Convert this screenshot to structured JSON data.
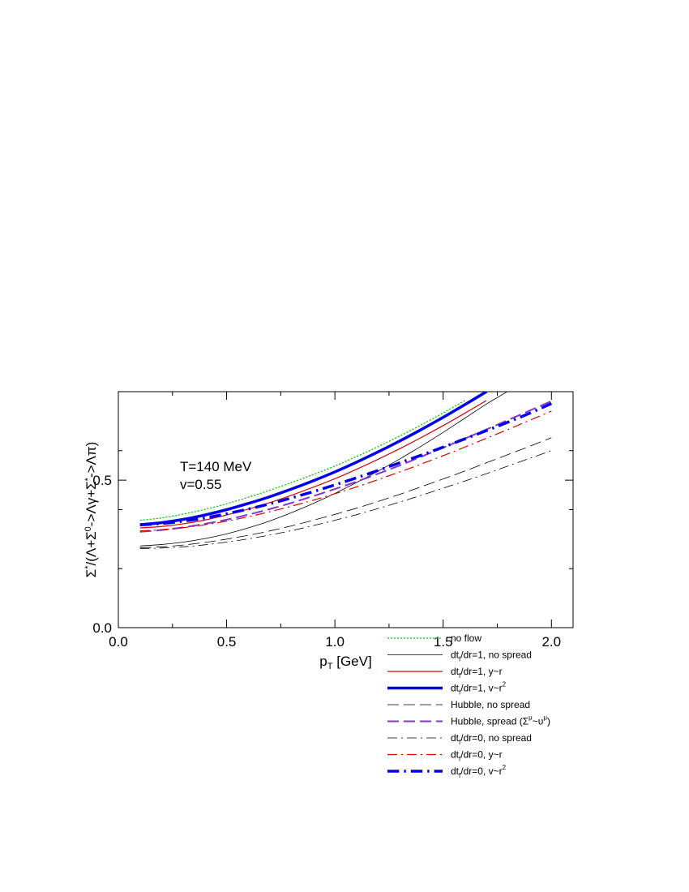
{
  "chart_data": {
    "type": "line",
    "title": "",
    "xlabel": "p_T [GeV]",
    "ylabel": "Σ*/(Λ+Σ0->Λγ+Σ*->Λπ)",
    "xlim": [
      0.0,
      2.1
    ],
    "ylim": [
      0.0,
      0.8
    ],
    "x_ticks": [
      0.0,
      0.5,
      1.0,
      1.5,
      2.0
    ],
    "x_tick_labels": [
      "0.0",
      "0.5",
      "1.0",
      "1.5",
      "2.0"
    ],
    "y_ticks": [
      0.0,
      0.5
    ],
    "y_tick_labels": [
      "0.0",
      "0.5"
    ],
    "annotations": [
      "T=140 MeV",
      "v=0.55"
    ],
    "legend_position": "bottom-right",
    "grid": false,
    "series": [
      {
        "name": "no flow",
        "color": "#00cc00",
        "dash": "dotted",
        "width": 1.3,
        "x": [
          0.1,
          0.2,
          0.3,
          0.4,
          0.5,
          0.6,
          0.7,
          0.8,
          0.9,
          1.0,
          1.1,
          1.2,
          1.3,
          1.4,
          1.5,
          1.6
        ],
        "y": [
          0.364,
          0.372,
          0.385,
          0.401,
          0.42,
          0.442,
          0.466,
          0.492,
          0.519,
          0.548,
          0.58,
          0.614,
          0.65,
          0.688,
          0.728,
          0.77
        ]
      },
      {
        "name": "dt_f/dr=1, no spread",
        "color": "#000000",
        "dash": "solid",
        "width": 0.8,
        "x": [
          0.1,
          0.2,
          0.3,
          0.4,
          0.5,
          0.6,
          0.7,
          0.8,
          0.9,
          1.0,
          1.1,
          1.2,
          1.3,
          1.4,
          1.5,
          1.6,
          1.7,
          1.8,
          1.9
        ],
        "y": [
          0.277,
          0.282,
          0.29,
          0.302,
          0.318,
          0.338,
          0.362,
          0.39,
          0.421,
          0.455,
          0.492,
          0.531,
          0.572,
          0.616,
          0.662,
          0.71,
          0.758,
          0.802,
          0.848
        ]
      },
      {
        "name": "dt_f/dr=1, y~r",
        "color": "#dd0000",
        "dash": "solid",
        "width": 1.2,
        "x": [
          0.1,
          0.2,
          0.3,
          0.4,
          0.5,
          0.6,
          0.7,
          0.8,
          0.9,
          1.0,
          1.1,
          1.2,
          1.3,
          1.4,
          1.5,
          1.6,
          1.7
        ],
        "y": [
          0.338,
          0.343,
          0.352,
          0.365,
          0.382,
          0.402,
          0.424,
          0.449,
          0.476,
          0.505,
          0.537,
          0.571,
          0.607,
          0.645,
          0.685,
          0.727,
          0.77
        ]
      },
      {
        "name": "dt_f/dr=1, v~r^2",
        "color": "#0000ee",
        "dash": "solid",
        "width": 3.5,
        "x": [
          0.1,
          0.2,
          0.3,
          0.4,
          0.5,
          0.6,
          0.7,
          0.8,
          0.9,
          1.0,
          1.1,
          1.2,
          1.3,
          1.4,
          1.5,
          1.6,
          1.7
        ],
        "y": [
          0.349,
          0.356,
          0.367,
          0.382,
          0.4,
          0.421,
          0.444,
          0.47,
          0.498,
          0.528,
          0.561,
          0.596,
          0.633,
          0.672,
          0.713,
          0.756,
          0.8
        ]
      },
      {
        "name": "Hubble, no spread",
        "color": "#000000",
        "dash": "dashed",
        "width": 0.8,
        "x": [
          0.1,
          0.2,
          0.3,
          0.4,
          0.5,
          0.6,
          0.7,
          0.8,
          0.9,
          1.0,
          1.1,
          1.2,
          1.3,
          1.4,
          1.5,
          1.6,
          1.7,
          1.8,
          1.9,
          2.0
        ],
        "y": [
          0.271,
          0.274,
          0.28,
          0.289,
          0.3,
          0.313,
          0.328,
          0.345,
          0.364,
          0.384,
          0.405,
          0.428,
          0.452,
          0.478,
          0.504,
          0.531,
          0.559,
          0.587,
          0.615,
          0.644
        ]
      },
      {
        "name": "Hubble, spread (Σ^μ~υ^μ)",
        "color": "#8833cc",
        "dash": "dashed",
        "width": 2.0,
        "x": [
          0.1,
          0.2,
          0.3,
          0.4,
          0.5,
          0.6,
          0.7,
          0.8,
          0.9,
          1.0,
          1.1,
          1.2,
          1.3,
          1.4,
          1.5,
          1.6,
          1.7,
          1.8,
          1.9,
          2.0
        ],
        "y": [
          0.325,
          0.331,
          0.34,
          0.352,
          0.366,
          0.383,
          0.402,
          0.423,
          0.446,
          0.47,
          0.495,
          0.522,
          0.55,
          0.58,
          0.61,
          0.641,
          0.672,
          0.704,
          0.736,
          0.768
        ]
      },
      {
        "name": "dt_f/dr=0, no spread",
        "color": "#000000",
        "dash": "dashdot",
        "width": 0.8,
        "x": [
          0.1,
          0.2,
          0.3,
          0.4,
          0.5,
          0.6,
          0.7,
          0.8,
          0.9,
          1.0,
          1.1,
          1.2,
          1.3,
          1.4,
          1.5,
          1.6,
          1.7,
          1.8,
          1.9,
          2.0
        ],
        "y": [
          0.268,
          0.27,
          0.274,
          0.281,
          0.29,
          0.301,
          0.314,
          0.329,
          0.346,
          0.364,
          0.383,
          0.404,
          0.426,
          0.449,
          0.473,
          0.497,
          0.522,
          0.548,
          0.574,
          0.6
        ]
      },
      {
        "name": "dt_f/dr=0, y~r",
        "color": "#dd0000",
        "dash": "dashdot",
        "width": 1.2,
        "x": [
          0.1,
          0.2,
          0.3,
          0.4,
          0.5,
          0.6,
          0.7,
          0.8,
          0.9,
          1.0,
          1.1,
          1.2,
          1.3,
          1.4,
          1.5,
          1.6,
          1.7,
          1.8,
          1.9,
          2.0
        ],
        "y": [
          0.328,
          0.332,
          0.339,
          0.349,
          0.361,
          0.376,
          0.393,
          0.412,
          0.432,
          0.454,
          0.477,
          0.502,
          0.528,
          0.555,
          0.583,
          0.612,
          0.642,
          0.672,
          0.703,
          0.734
        ]
      },
      {
        "name": "dt_f/dr=0, v~r^2",
        "color": "#0000ee",
        "dash": "dashdot",
        "width": 3.5,
        "x": [
          0.1,
          0.2,
          0.3,
          0.4,
          0.5,
          0.6,
          0.7,
          0.8,
          0.9,
          1.0,
          1.1,
          1.2,
          1.3,
          1.4,
          1.5,
          1.6,
          1.7,
          1.8,
          1.9,
          2.0
        ],
        "y": [
          0.348,
          0.353,
          0.361,
          0.372,
          0.386,
          0.402,
          0.42,
          0.44,
          0.461,
          0.484,
          0.508,
          0.533,
          0.559,
          0.585,
          0.612,
          0.64,
          0.668,
          0.697,
          0.727,
          0.76
        ]
      }
    ]
  }
}
